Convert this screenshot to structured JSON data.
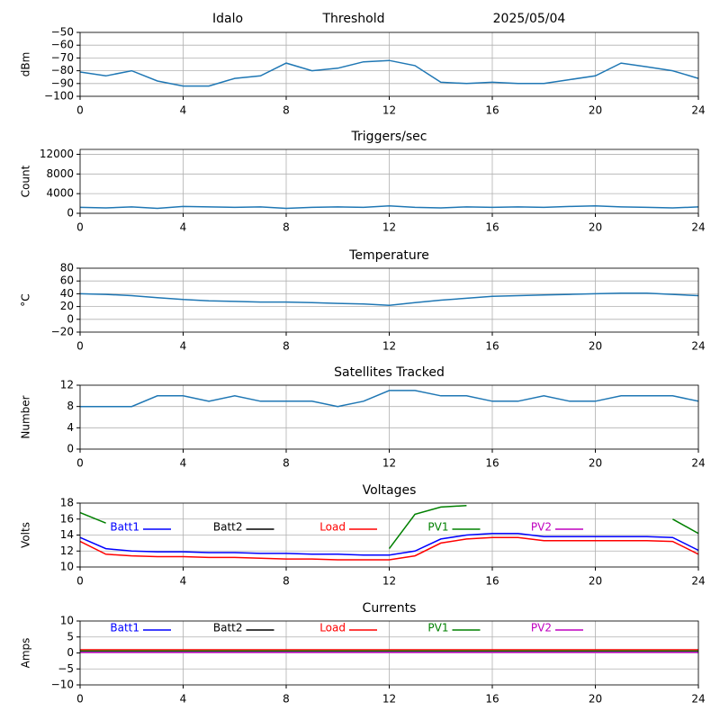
{
  "chart_data": [
    {
      "type": "line",
      "titles": [
        "Idalo",
        "Threshold",
        "2025/05/04"
      ],
      "ylabel": "dBm",
      "x": [
        0,
        1,
        2,
        3,
        4,
        5,
        6,
        7,
        8,
        9,
        10,
        11,
        12,
        13,
        14,
        15,
        16,
        17,
        18,
        19,
        20,
        21,
        22,
        23,
        24
      ],
      "series": [
        {
          "name": "dBm",
          "color": "#1f77b4",
          "values": [
            -81,
            -84,
            -80,
            -88,
            -92,
            -92,
            -86,
            -84,
            -74,
            -80,
            -78,
            -73,
            -72,
            -76,
            -89,
            -90,
            -89,
            -90,
            -90,
            -87,
            -84,
            -74,
            -77,
            -80,
            -86
          ]
        }
      ],
      "xlim": [
        0,
        24
      ],
      "xticks": [
        0,
        4,
        8,
        12,
        16,
        20,
        24
      ],
      "ylim": [
        -100,
        -50
      ],
      "yticks": [
        {
          "value": -100,
          "label": "−100"
        },
        {
          "value": -90,
          "label": "−90"
        },
        {
          "value": -80,
          "label": "−80"
        },
        {
          "value": -70,
          "label": "−70"
        },
        {
          "value": -60,
          "label": "−60"
        },
        {
          "value": -50,
          "label": "−50"
        }
      ],
      "grid": true
    },
    {
      "type": "line",
      "title": "Triggers/sec",
      "ylabel": "Count",
      "x": [
        0,
        1,
        2,
        3,
        4,
        5,
        6,
        7,
        8,
        9,
        10,
        11,
        12,
        13,
        14,
        15,
        16,
        17,
        18,
        19,
        20,
        21,
        22,
        23,
        24
      ],
      "series": [
        {
          "name": "Count",
          "color": "#1f77b4",
          "values": [
            1200,
            1100,
            1300,
            1000,
            1400,
            1300,
            1200,
            1300,
            1000,
            1200,
            1300,
            1200,
            1500,
            1200,
            1100,
            1300,
            1200,
            1300,
            1200,
            1400,
            1500,
            1300,
            1200,
            1100,
            1300
          ]
        }
      ],
      "xlim": [
        0,
        24
      ],
      "xticks": [
        0,
        4,
        8,
        12,
        16,
        20,
        24
      ],
      "ylim": [
        0,
        13000
      ],
      "yticks": [
        0,
        4000,
        8000,
        12000
      ],
      "grid": true
    },
    {
      "type": "line",
      "title": "Temperature",
      "ylabel": "°C",
      "x": [
        0,
        1,
        2,
        3,
        4,
        5,
        6,
        7,
        8,
        9,
        10,
        11,
        12,
        13,
        14,
        15,
        16,
        17,
        18,
        19,
        20,
        21,
        22,
        23,
        24
      ],
      "series": [
        {
          "name": "Temperature",
          "color": "#1f77b4",
          "values": [
            40,
            39,
            37,
            34,
            31,
            29,
            28,
            27,
            27,
            26,
            25,
            24,
            22,
            26,
            30,
            33,
            36,
            37,
            38,
            39,
            40,
            41,
            41,
            39,
            37
          ]
        }
      ],
      "xlim": [
        0,
        24
      ],
      "xticks": [
        0,
        4,
        8,
        12,
        16,
        20,
        24
      ],
      "ylim": [
        -20,
        80
      ],
      "yticks": [
        {
          "value": -20,
          "label": "−20"
        },
        0,
        20,
        40,
        60,
        80
      ],
      "grid": true
    },
    {
      "type": "line",
      "title": "Satellites Tracked",
      "ylabel": "Number",
      "x": [
        0,
        1,
        2,
        3,
        4,
        5,
        6,
        7,
        8,
        9,
        10,
        11,
        12,
        13,
        14,
        15,
        16,
        17,
        18,
        19,
        20,
        21,
        22,
        23,
        24
      ],
      "series": [
        {
          "name": "Number",
          "color": "#1f77b4",
          "values": [
            8,
            8,
            8,
            10,
            10,
            9,
            10,
            9,
            9,
            9,
            8,
            9,
            11,
            11,
            10,
            10,
            9,
            9,
            10,
            9,
            9,
            10,
            10,
            10,
            9
          ]
        }
      ],
      "xlim": [
        0,
        24
      ],
      "xticks": [
        0,
        4,
        8,
        12,
        16,
        20,
        24
      ],
      "ylim": [
        0,
        12
      ],
      "yticks": [
        0,
        4,
        8,
        12
      ],
      "grid": true
    },
    {
      "type": "line",
      "title": "Voltages",
      "ylabel": "Volts",
      "x": [
        0,
        1,
        2,
        3,
        4,
        5,
        6,
        7,
        8,
        9,
        10,
        11,
        12,
        13,
        14,
        15,
        16,
        17,
        18,
        19,
        20,
        21,
        22,
        23,
        24
      ],
      "series": [
        {
          "name": "Batt1",
          "color": "#0000ff",
          "values": [
            13.7,
            12.3,
            12.0,
            11.9,
            11.9,
            11.8,
            11.8,
            11.7,
            11.7,
            11.6,
            11.6,
            11.5,
            11.5,
            12.0,
            13.5,
            14.0,
            14.2,
            14.2,
            13.8,
            13.8,
            13.8,
            13.8,
            13.8,
            13.7,
            12.1
          ]
        },
        {
          "name": "Batt2",
          "color": "#000000",
          "values": [
            null,
            null,
            null,
            null,
            null,
            null,
            null,
            null,
            null,
            null,
            null,
            null,
            null,
            null,
            null,
            null,
            null,
            null,
            null,
            null,
            null,
            null,
            null,
            null,
            null
          ]
        },
        {
          "name": "Load",
          "color": "#ff0000",
          "values": [
            13.2,
            11.6,
            11.4,
            11.3,
            11.3,
            11.2,
            11.2,
            11.1,
            11.0,
            11.0,
            10.9,
            10.9,
            10.9,
            11.4,
            13.0,
            13.5,
            13.7,
            13.7,
            13.3,
            13.3,
            13.3,
            13.3,
            13.3,
            13.2,
            11.6
          ]
        },
        {
          "name": "PV1",
          "color": "#008000",
          "values": [
            16.8,
            15.5,
            null,
            null,
            null,
            null,
            null,
            null,
            null,
            null,
            null,
            null,
            12.3,
            16.6,
            17.5,
            17.7,
            null,
            null,
            null,
            null,
            null,
            null,
            null,
            16.0,
            14.2
          ]
        },
        {
          "name": "PV2",
          "color": "#bf00bf",
          "values": [
            null,
            null,
            null,
            null,
            null,
            null,
            null,
            null,
            null,
            null,
            null,
            null,
            null,
            null,
            null,
            null,
            null,
            null,
            null,
            null,
            null,
            null,
            null,
            null,
            null
          ]
        }
      ],
      "xlim": [
        0,
        24
      ],
      "xticks": [
        0,
        4,
        8,
        12,
        16,
        20,
        24
      ],
      "ylim": [
        10,
        18
      ],
      "yticks": [
        10,
        12,
        14,
        16,
        18
      ],
      "grid": true
    },
    {
      "type": "line",
      "title": "Currents",
      "ylabel": "Amps",
      "x": [
        0,
        1,
        2,
        3,
        4,
        5,
        6,
        7,
        8,
        9,
        10,
        11,
        12,
        13,
        14,
        15,
        16,
        17,
        18,
        19,
        20,
        21,
        22,
        23,
        24
      ],
      "series": [
        {
          "name": "Batt1",
          "color": "#0000ff",
          "values": [
            0.4,
            0.4,
            0.4,
            0.4,
            0.4,
            0.4,
            0.4,
            0.4,
            0.4,
            0.4,
            0.4,
            0.4,
            0.4,
            0.4,
            0.4,
            0.4,
            0.4,
            0.4,
            0.4,
            0.4,
            0.4,
            0.4,
            0.4,
            0.4,
            0.4
          ]
        },
        {
          "name": "Batt2",
          "color": "#000000",
          "values": [
            null,
            null,
            null,
            null,
            null,
            null,
            null,
            null,
            null,
            null,
            null,
            null,
            null,
            null,
            null,
            null,
            null,
            null,
            null,
            null,
            null,
            null,
            null,
            null,
            null
          ]
        },
        {
          "name": "Load",
          "color": "#ff0000",
          "values": [
            1.0,
            1.0,
            1.0,
            1.0,
            1.0,
            1.0,
            1.0,
            1.0,
            1.0,
            1.0,
            1.0,
            1.0,
            1.0,
            1.0,
            1.0,
            1.0,
            1.0,
            1.0,
            1.0,
            1.0,
            1.0,
            1.0,
            1.0,
            1.0,
            1.0
          ]
        },
        {
          "name": "PV1",
          "color": "#008000",
          "values": [
            0.6,
            0.6,
            0.6,
            0.6,
            0.6,
            0.6,
            0.6,
            0.6,
            0.6,
            0.6,
            0.6,
            0.6,
            0.6,
            0.6,
            0.6,
            0.6,
            0.6,
            0.6,
            0.6,
            0.6,
            0.6,
            0.6,
            0.6,
            0.6,
            0.6
          ]
        },
        {
          "name": "PV2",
          "color": "#bf00bf",
          "values": [
            0.2,
            0.2,
            0.2,
            0.2,
            0.2,
            0.2,
            0.2,
            0.2,
            0.2,
            0.2,
            0.2,
            0.2,
            0.2,
            0.2,
            0.2,
            0.2,
            0.2,
            0.2,
            0.2,
            0.2,
            0.2,
            0.2,
            0.2,
            0.2,
            0.2
          ]
        }
      ],
      "xlim": [
        0,
        24
      ],
      "xticks": [
        0,
        4,
        8,
        12,
        16,
        20,
        24
      ],
      "ylim": [
        -10,
        10
      ],
      "yticks": [
        {
          "value": -10,
          "label": "−10"
        },
        {
          "value": -5,
          "label": "−5"
        },
        0,
        5,
        10
      ],
      "grid": true
    }
  ]
}
